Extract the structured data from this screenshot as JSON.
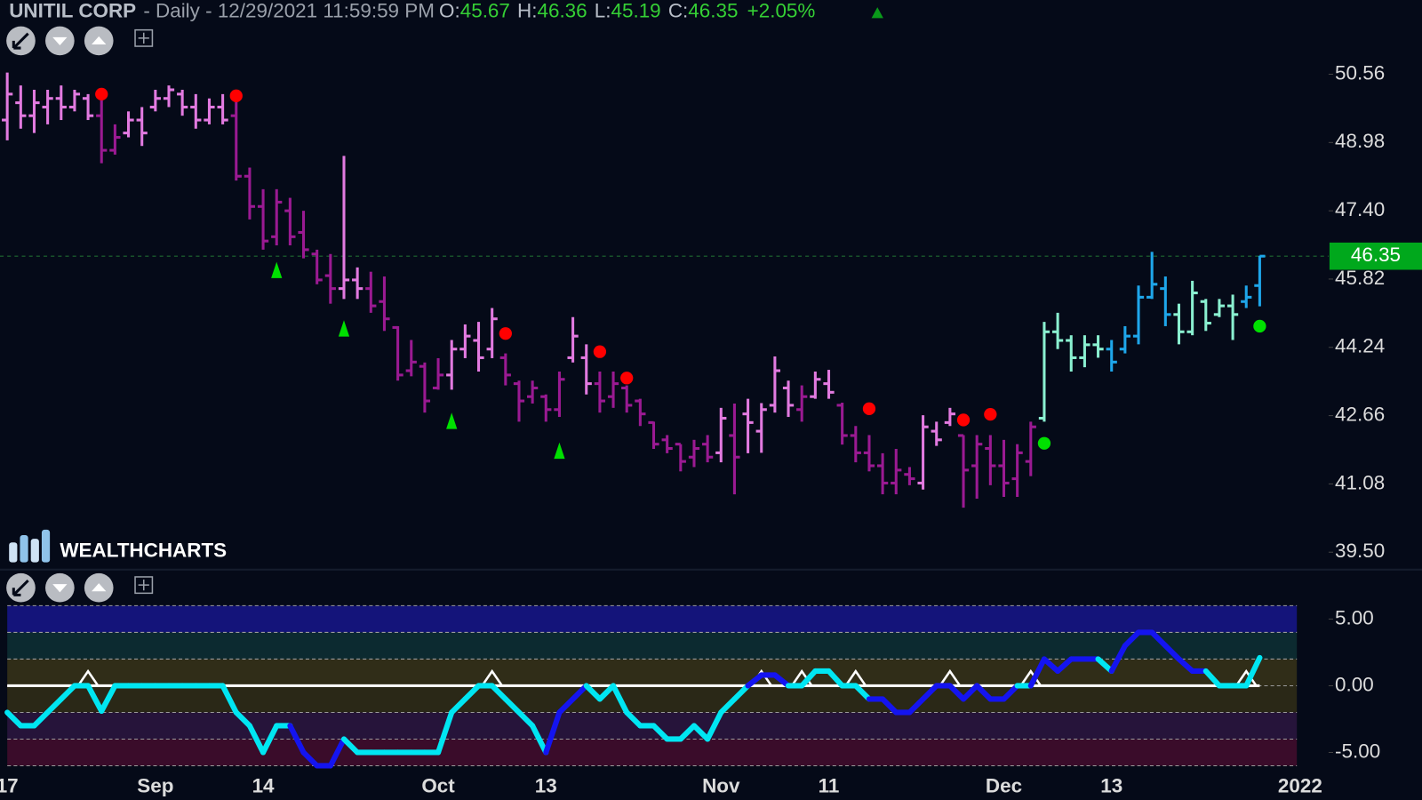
{
  "chart_data": [
    {
      "type": "ohlc",
      "title": "UNITIL CORP",
      "subtitle": "- Daily - 12/29/2021 11:59:59 PM",
      "quote": [
        {
          "label": "O:",
          "value": 45.67
        },
        {
          "label": "H:",
          "value": 46.36
        },
        {
          "label": "L:",
          "value": 45.19
        },
        {
          "label": "C:",
          "value": 46.35
        }
      ],
      "change": {
        "value": 2.05,
        "label": "+2.05%"
      },
      "open": [
        49.5,
        49.9,
        49.6,
        49.8,
        50.0,
        49.8,
        50.0,
        49.6,
        48.8,
        49.2,
        49.5,
        49.8,
        50.0,
        50.1,
        49.8,
        49.5,
        49.8,
        49.6,
        48.2,
        47.5,
        46.8,
        47.4,
        46.9,
        46.4,
        45.9,
        45.6,
        45.8,
        45.6,
        45.3,
        44.7,
        43.7,
        43.8,
        43.3,
        43.6,
        44.2,
        44.4,
        44.2,
        44.0,
        43.4,
        43.1,
        43.1,
        42.8,
        44.0,
        44.0,
        43.4,
        43.1,
        43.3,
        43.0,
        42.5,
        42.1,
        42.0,
        41.7,
        42.0,
        41.8,
        42.2,
        42.7,
        42.3,
        42.9,
        43.3,
        42.8,
        43.1,
        43.4,
        42.9,
        42.2,
        41.8,
        41.5,
        41.1,
        41.3,
        41.1,
        42.3,
        42.5,
        42.2,
        41.5,
        41.9,
        41.5,
        41.2,
        41.6,
        42.6,
        44.6,
        44.4,
        44.0,
        44.3,
        44.2,
        44.2,
        44.5,
        45.4,
        45.6,
        45.0,
        44.6,
        45.3,
        45.0,
        45.2,
        45.3,
        45.67
      ],
      "high": [
        50.6,
        50.3,
        50.2,
        50.2,
        50.3,
        50.2,
        50.1,
        50.0,
        49.4,
        49.7,
        49.8,
        50.2,
        50.3,
        50.2,
        50.1,
        50.0,
        50.1,
        50.2,
        48.4,
        47.9,
        47.9,
        47.7,
        47.4,
        46.5,
        46.4,
        48.67,
        46.09,
        45.99,
        45.88,
        44.73,
        44.41,
        43.89,
        43.99,
        44.41,
        44.77,
        44.83,
        45.15,
        44.1,
        43.47,
        43.47,
        43.15,
        43.68,
        44.94,
        44.31,
        43.68,
        43.68,
        43.36,
        43.05,
        42.52,
        42.21,
        42.0,
        42.1,
        42.21,
        42.84,
        42.94,
        43.05,
        42.95,
        44.03,
        43.47,
        43.36,
        43.68,
        43.72,
        42.96,
        42.42,
        42.21,
        41.79,
        41.89,
        41.47,
        42.67,
        42.52,
        42.84,
        42.21,
        42.21,
        42.21,
        42.1,
        42.0,
        42.52,
        44.83,
        45.04,
        44.52,
        44.52,
        44.52,
        44.41,
        44.73,
        45.67,
        46.45,
        45.88,
        45.25,
        45.78,
        45.36,
        45.36,
        45.46,
        45.67,
        46.36
      ],
      "low": [
        49.03,
        49.3,
        49.2,
        49.4,
        49.5,
        49.7,
        49.5,
        48.5,
        48.7,
        49.1,
        48.9,
        49.7,
        49.8,
        49.6,
        49.3,
        49.4,
        49.4,
        48.1,
        47.2,
        46.5,
        46.6,
        46.6,
        46.3,
        45.7,
        45.25,
        45.36,
        45.36,
        45.04,
        44.62,
        43.47,
        43.57,
        42.73,
        43.26,
        43.26,
        43.99,
        43.68,
        43.99,
        43.36,
        42.52,
        42.94,
        42.52,
        42.63,
        43.89,
        43.15,
        42.73,
        42.84,
        42.73,
        42.42,
        41.89,
        41.79,
        41.37,
        41.47,
        41.58,
        41.58,
        40.84,
        41.79,
        41.8,
        42.73,
        42.63,
        42.52,
        43.05,
        43.05,
        41.99,
        41.58,
        41.37,
        40.84,
        40.84,
        41.05,
        40.95,
        41.96,
        42.42,
        40.53,
        40.74,
        41.05,
        40.78,
        40.78,
        41.26,
        42.52,
        44.2,
        43.68,
        43.78,
        44.0,
        43.68,
        44.1,
        44.31,
        45.36,
        44.73,
        44.31,
        44.52,
        44.62,
        44.94,
        44.41,
        45.15,
        45.19
      ],
      "close": [
        50.1,
        49.6,
        49.9,
        50.0,
        49.8,
        50.1,
        49.6,
        48.8,
        49.1,
        49.5,
        49.2,
        50.0,
        50.2,
        49.8,
        49.5,
        49.8,
        49.5,
        48.2,
        47.5,
        46.7,
        47.6,
        46.8,
        46.5,
        45.8,
        45.6,
        45.8,
        45.6,
        45.2,
        44.9,
        43.6,
        43.9,
        43.0,
        43.6,
        44.2,
        44.5,
        44.0,
        44.9,
        43.6,
        43.0,
        43.3,
        42.8,
        43.5,
        44.5,
        43.4,
        43.0,
        43.4,
        42.9,
        42.7,
        42.0,
        41.9,
        41.6,
        41.9,
        41.7,
        42.6,
        41.7,
        42.5,
        42.8,
        43.7,
        42.9,
        43.1,
        43.5,
        43.2,
        42.2,
        41.8,
        41.5,
        41.1,
        41.4,
        41.2,
        42.4,
        42.1,
        42.7,
        41.4,
        42.0,
        41.5,
        41.1,
        41.8,
        42.4,
        44.6,
        44.4,
        44.0,
        44.3,
        44.2,
        43.9,
        44.5,
        45.4,
        45.7,
        45.0,
        44.6,
        45.5,
        44.8,
        45.2,
        45.0,
        45.4,
        46.35
      ],
      "colors": [
        "#e27ae0",
        "#e27ae0",
        "#e27ae0",
        "#e27ae0",
        "#e27ae0",
        "#e27ae0",
        "#e27ae0",
        "#9a1a92",
        "#9a1a92",
        "#e27ae0",
        "#e27ae0",
        "#e27ae0",
        "#e27ae0",
        "#e27ae0",
        "#e27ae0",
        "#e27ae0",
        "#e27ae0",
        "#9a1a92",
        "#9a1a92",
        "#9a1a92",
        "#9a1a92",
        "#9a1a92",
        "#9a1a92",
        "#9a1a92",
        "#9a1a92",
        "#e27ae0",
        "#e27ae0",
        "#9a1a92",
        "#9a1a92",
        "#9a1a92",
        "#9a1a92",
        "#9a1a92",
        "#9a1a92",
        "#e27ae0",
        "#e27ae0",
        "#e27ae0",
        "#e27ae0",
        "#9a1a92",
        "#9a1a92",
        "#9a1a92",
        "#9a1a92",
        "#9a1a92",
        "#e27ae0",
        "#e27ae0",
        "#9a1a92",
        "#9a1a92",
        "#9a1a92",
        "#9a1a92",
        "#9a1a92",
        "#9a1a92",
        "#9a1a92",
        "#9a1a92",
        "#9a1a92",
        "#e27ae0",
        "#9a1a92",
        "#e27ae0",
        "#e27ae0",
        "#e27ae0",
        "#e27ae0",
        "#9a1a92",
        "#e27ae0",
        "#e27ae0",
        "#9a1a92",
        "#9a1a92",
        "#9a1a92",
        "#9a1a92",
        "#9a1a92",
        "#9a1a92",
        "#e27ae0",
        "#e27ae0",
        "#e27ae0",
        "#9a1a92",
        "#9a1a92",
        "#9a1a92",
        "#9a1a92",
        "#9a1a92",
        "#9a1a92",
        "#8af0d0",
        "#8af0d0",
        "#8af0d0",
        "#8af0d0",
        "#8af0d0",
        "#1ea6ea",
        "#1ea6ea",
        "#1ea6ea",
        "#1ea6ea",
        "#1ea6ea",
        "#8af0d0",
        "#8af0d0",
        "#8af0d0",
        "#8af0d0",
        "#8af0d0",
        "#1ea6ea",
        "#1ea6ea"
      ],
      "ylim": [
        39.16,
        51.69
      ],
      "yticks": [
        50.56,
        48.98,
        {
          "value": 47.4,
          "label": "47.40"
        },
        45.82,
        44.24,
        42.66,
        41.08,
        {
          "value": 39.5,
          "label": "39.50"
        }
      ],
      "last_price": {
        "value": 46.35,
        "color": "#00a81c"
      },
      "sell_signals": {
        "color": "#ff0000",
        "x": [
          7,
          17,
          37,
          44,
          46,
          64,
          71,
          73
        ],
        "y": [
          50.1,
          50.06,
          44.56,
          44.14,
          43.53,
          42.82,
          42.56,
          42.69
        ]
      },
      "buy_arrows": {
        "color": "#00e000",
        "x": [
          20,
          25,
          33,
          41
        ],
        "y": [
          46.03,
          44.68,
          42.54,
          41.85
        ]
      },
      "buy_signals": {
        "color": "#00e000",
        "x": [
          77,
          93
        ],
        "y": [
          42.02,
          44.73
        ]
      },
      "watermark": "WEALTHCHARTS"
    },
    {
      "type": "line",
      "categories": [
        "17",
        null,
        null,
        null,
        null,
        null,
        null,
        null,
        null,
        null,
        null,
        "Sep",
        null,
        null,
        null,
        null,
        null,
        null,
        null,
        "14",
        null,
        null,
        null,
        null,
        null,
        null,
        null,
        null,
        null,
        null,
        null,
        null,
        "Oct",
        null,
        null,
        null,
        null,
        null,
        null,
        null,
        "13",
        null,
        null,
        null,
        null,
        null,
        null,
        null,
        null,
        null,
        null,
        null,
        null,
        "Nov",
        null,
        null,
        null,
        null,
        null,
        null,
        null,
        "11",
        null,
        null,
        null,
        null,
        null,
        null,
        null,
        null,
        null,
        null,
        null,
        null,
        "Dec",
        null,
        null,
        null,
        null,
        null,
        null,
        null,
        "13",
        null,
        null,
        null,
        null,
        null,
        null,
        null,
        null,
        null,
        null,
        null,
        null,
        null,
        "2022"
      ],
      "values": [
        -2,
        -3,
        -3,
        -2,
        -1,
        0,
        0,
        -1.9,
        0,
        0,
        0,
        0,
        0,
        0,
        0,
        0,
        0,
        -2,
        -3,
        -5,
        -3,
        -3,
        -5,
        -6,
        -6,
        -4,
        -5,
        -5,
        -5,
        -5,
        -5,
        -5,
        -5,
        -2,
        -1,
        0,
        0,
        -1,
        -2,
        -3,
        -5,
        -2,
        -1,
        0,
        -1,
        0,
        -2,
        -3,
        -3,
        -4,
        -4,
        -3,
        -4,
        -2,
        -1,
        0,
        0.8,
        0.8,
        0,
        0,
        1.1,
        1.1,
        0,
        0,
        -1,
        -1,
        -2,
        -2,
        -1,
        0,
        0,
        -1,
        0,
        -1,
        -1,
        0,
        0,
        2,
        1.1,
        2,
        2,
        2,
        1.1,
        3,
        4,
        4,
        3,
        2,
        1.1,
        1.1,
        0,
        0,
        0,
        2.1,
        null,
        null,
        null
      ],
      "colors": [
        "#00e6f2",
        "#00e6f2",
        "#00e6f2",
        "#00e6f2",
        "#00e6f2",
        "#00e6f2",
        "#00e6f2",
        "#00e6f2",
        "#00e6f2",
        "#00e6f2",
        "#00e6f2",
        "#00e6f2",
        "#00e6f2",
        "#00e6f2",
        "#00e6f2",
        "#00e6f2",
        "#00e6f2",
        "#00e6f2",
        "#00e6f2",
        "#00e6f2",
        "#00e6f2",
        "#00e6f2",
        "#1414f0",
        "#1414f0",
        "#1414f0",
        "#1414f0",
        "#00e6f2",
        "#00e6f2",
        "#00e6f2",
        "#00e6f2",
        "#00e6f2",
        "#00e6f2",
        "#00e6f2",
        "#00e6f2",
        "#00e6f2",
        "#00e6f2",
        "#00e6f2",
        "#00e6f2",
        "#00e6f2",
        "#00e6f2",
        "#00e6f2",
        "#1414f0",
        "#1414f0",
        "#1414f0",
        "#00e6f2",
        "#00e6f2",
        "#00e6f2",
        "#00e6f2",
        "#00e6f2",
        "#00e6f2",
        "#00e6f2",
        "#00e6f2",
        "#00e6f2",
        "#00e6f2",
        "#00e6f2",
        "#00e6f2",
        "#1414f0",
        "#1414f0",
        "#1414f0",
        "#00e6f2",
        "#00e6f2",
        "#00e6f2",
        "#00e6f2",
        "#00e6f2",
        "#00e6f2",
        "#1414f0",
        "#1414f0",
        "#1414f0",
        "#1414f0",
        "#1414f0",
        "#1414f0",
        "#1414f0",
        "#1414f0",
        "#1414f0",
        "#1414f0",
        "#1414f0",
        "#00e6f2",
        "#1414f0",
        "#1414f0",
        "#1414f0",
        "#1414f0",
        "#1414f0",
        "#00e6f2",
        "#1414f0",
        "#1414f0",
        "#1414f0",
        "#1414f0",
        "#1414f0",
        "#1414f0",
        "#1414f0",
        "#00e6f2",
        "#00e6f2",
        "#00e6f2",
        "#00e6f2",
        null,
        null,
        null
      ],
      "ylim": [
        -6.39,
        6.53
      ],
      "yticks": [
        {
          "value": 5,
          "label": "5.00"
        },
        {
          "value": 0,
          "label": "0.00"
        },
        {
          "value": -5,
          "label": "-5.00"
        }
      ],
      "zero_line": {
        "value": 0,
        "color": "#ffffff"
      },
      "bands": [
        {
          "from": 4,
          "to": 6,
          "color": "#14147a"
        },
        {
          "from": 2,
          "to": 4,
          "color": "#0c2a30"
        },
        {
          "from": 0,
          "to": 2,
          "color": "#302d18"
        },
        {
          "from": -2,
          "to": 0,
          "color": "#2a2817"
        },
        {
          "from": -4,
          "to": -2,
          "color": "#26143a"
        },
        {
          "from": -6,
          "to": -4,
          "color": "#3a0c2a"
        }
      ],
      "markers": {
        "color": "#ffffff",
        "x": [
          6,
          36,
          56,
          59,
          63,
          70,
          76,
          92
        ],
        "y": [
          0,
          0,
          0,
          0,
          0,
          0,
          0,
          0
        ]
      }
    }
  ]
}
